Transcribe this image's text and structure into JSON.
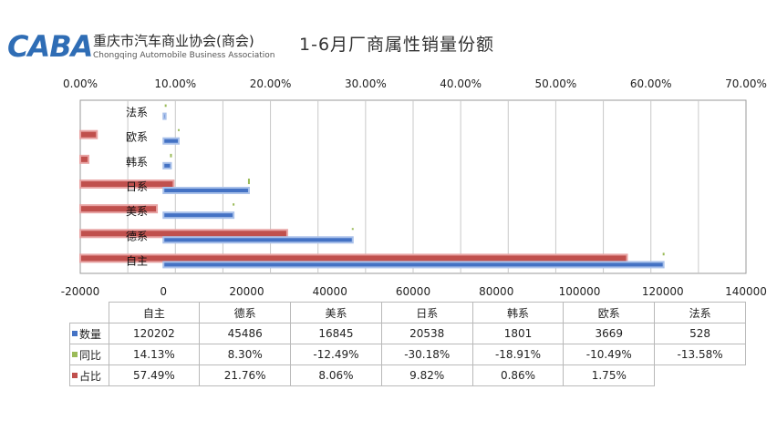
{
  "header": {
    "logo_mark": "CABA",
    "logo_cn": "重庆市汽车商业协会(商会)",
    "logo_en": "Chongqing Automobile Business Association",
    "title": "1-6月厂商属性销量份额"
  },
  "colors": {
    "quantity": "#4472c4",
    "yoy": "#9bbb59",
    "share": "#c0504d"
  },
  "chart_data": {
    "type": "bar",
    "orientation": "horizontal",
    "categories": [
      "自主",
      "德系",
      "美系",
      "日系",
      "韩系",
      "欧系",
      "法系"
    ],
    "series": [
      {
        "name": "数量",
        "axis": "bottom",
        "values": [
          120202,
          45486,
          16845,
          20538,
          1801,
          3669,
          528
        ]
      },
      {
        "name": "同比",
        "axis": "top",
        "values": [
          0.1413,
          0.083,
          -0.1249,
          -0.3018,
          -0.1891,
          -0.1049,
          -0.1358
        ]
      },
      {
        "name": "占比",
        "axis": "top",
        "values": [
          0.5749,
          0.2176,
          0.0806,
          0.0982,
          0.0086,
          0.0175,
          null
        ]
      }
    ],
    "top_axis": {
      "min": 0,
      "max": 0.7,
      "step": 0.1,
      "tick_labels": [
        "0.00%",
        "10.00%",
        "20.00%",
        "30.00%",
        "40.00%",
        "50.00%",
        "60.00%",
        "70.00%"
      ]
    },
    "bottom_axis": {
      "min": -20000,
      "max": 140000,
      "step": 20000,
      "tick_labels": [
        "-20000",
        "0",
        "20000",
        "40000",
        "60000",
        "80000",
        "100000",
        "120000",
        "140000"
      ]
    },
    "grid": true,
    "legend": "table-below"
  },
  "table": {
    "header": [
      "自主",
      "德系",
      "美系",
      "日系",
      "韩系",
      "欧系",
      "法系"
    ],
    "rows": [
      {
        "label": "数量",
        "cells": [
          "120202",
          "45486",
          "16845",
          "20538",
          "1801",
          "3669",
          "528"
        ]
      },
      {
        "label": "同比",
        "cells": [
          "14.13%",
          "8.30%",
          "-12.49%",
          "-30.18%",
          "-18.91%",
          "-10.49%",
          "-13.58%"
        ]
      },
      {
        "label": "占比",
        "cells": [
          "57.49%",
          "21.76%",
          "8.06%",
          "9.82%",
          "0.86%",
          "1.75%",
          ""
        ]
      }
    ]
  }
}
